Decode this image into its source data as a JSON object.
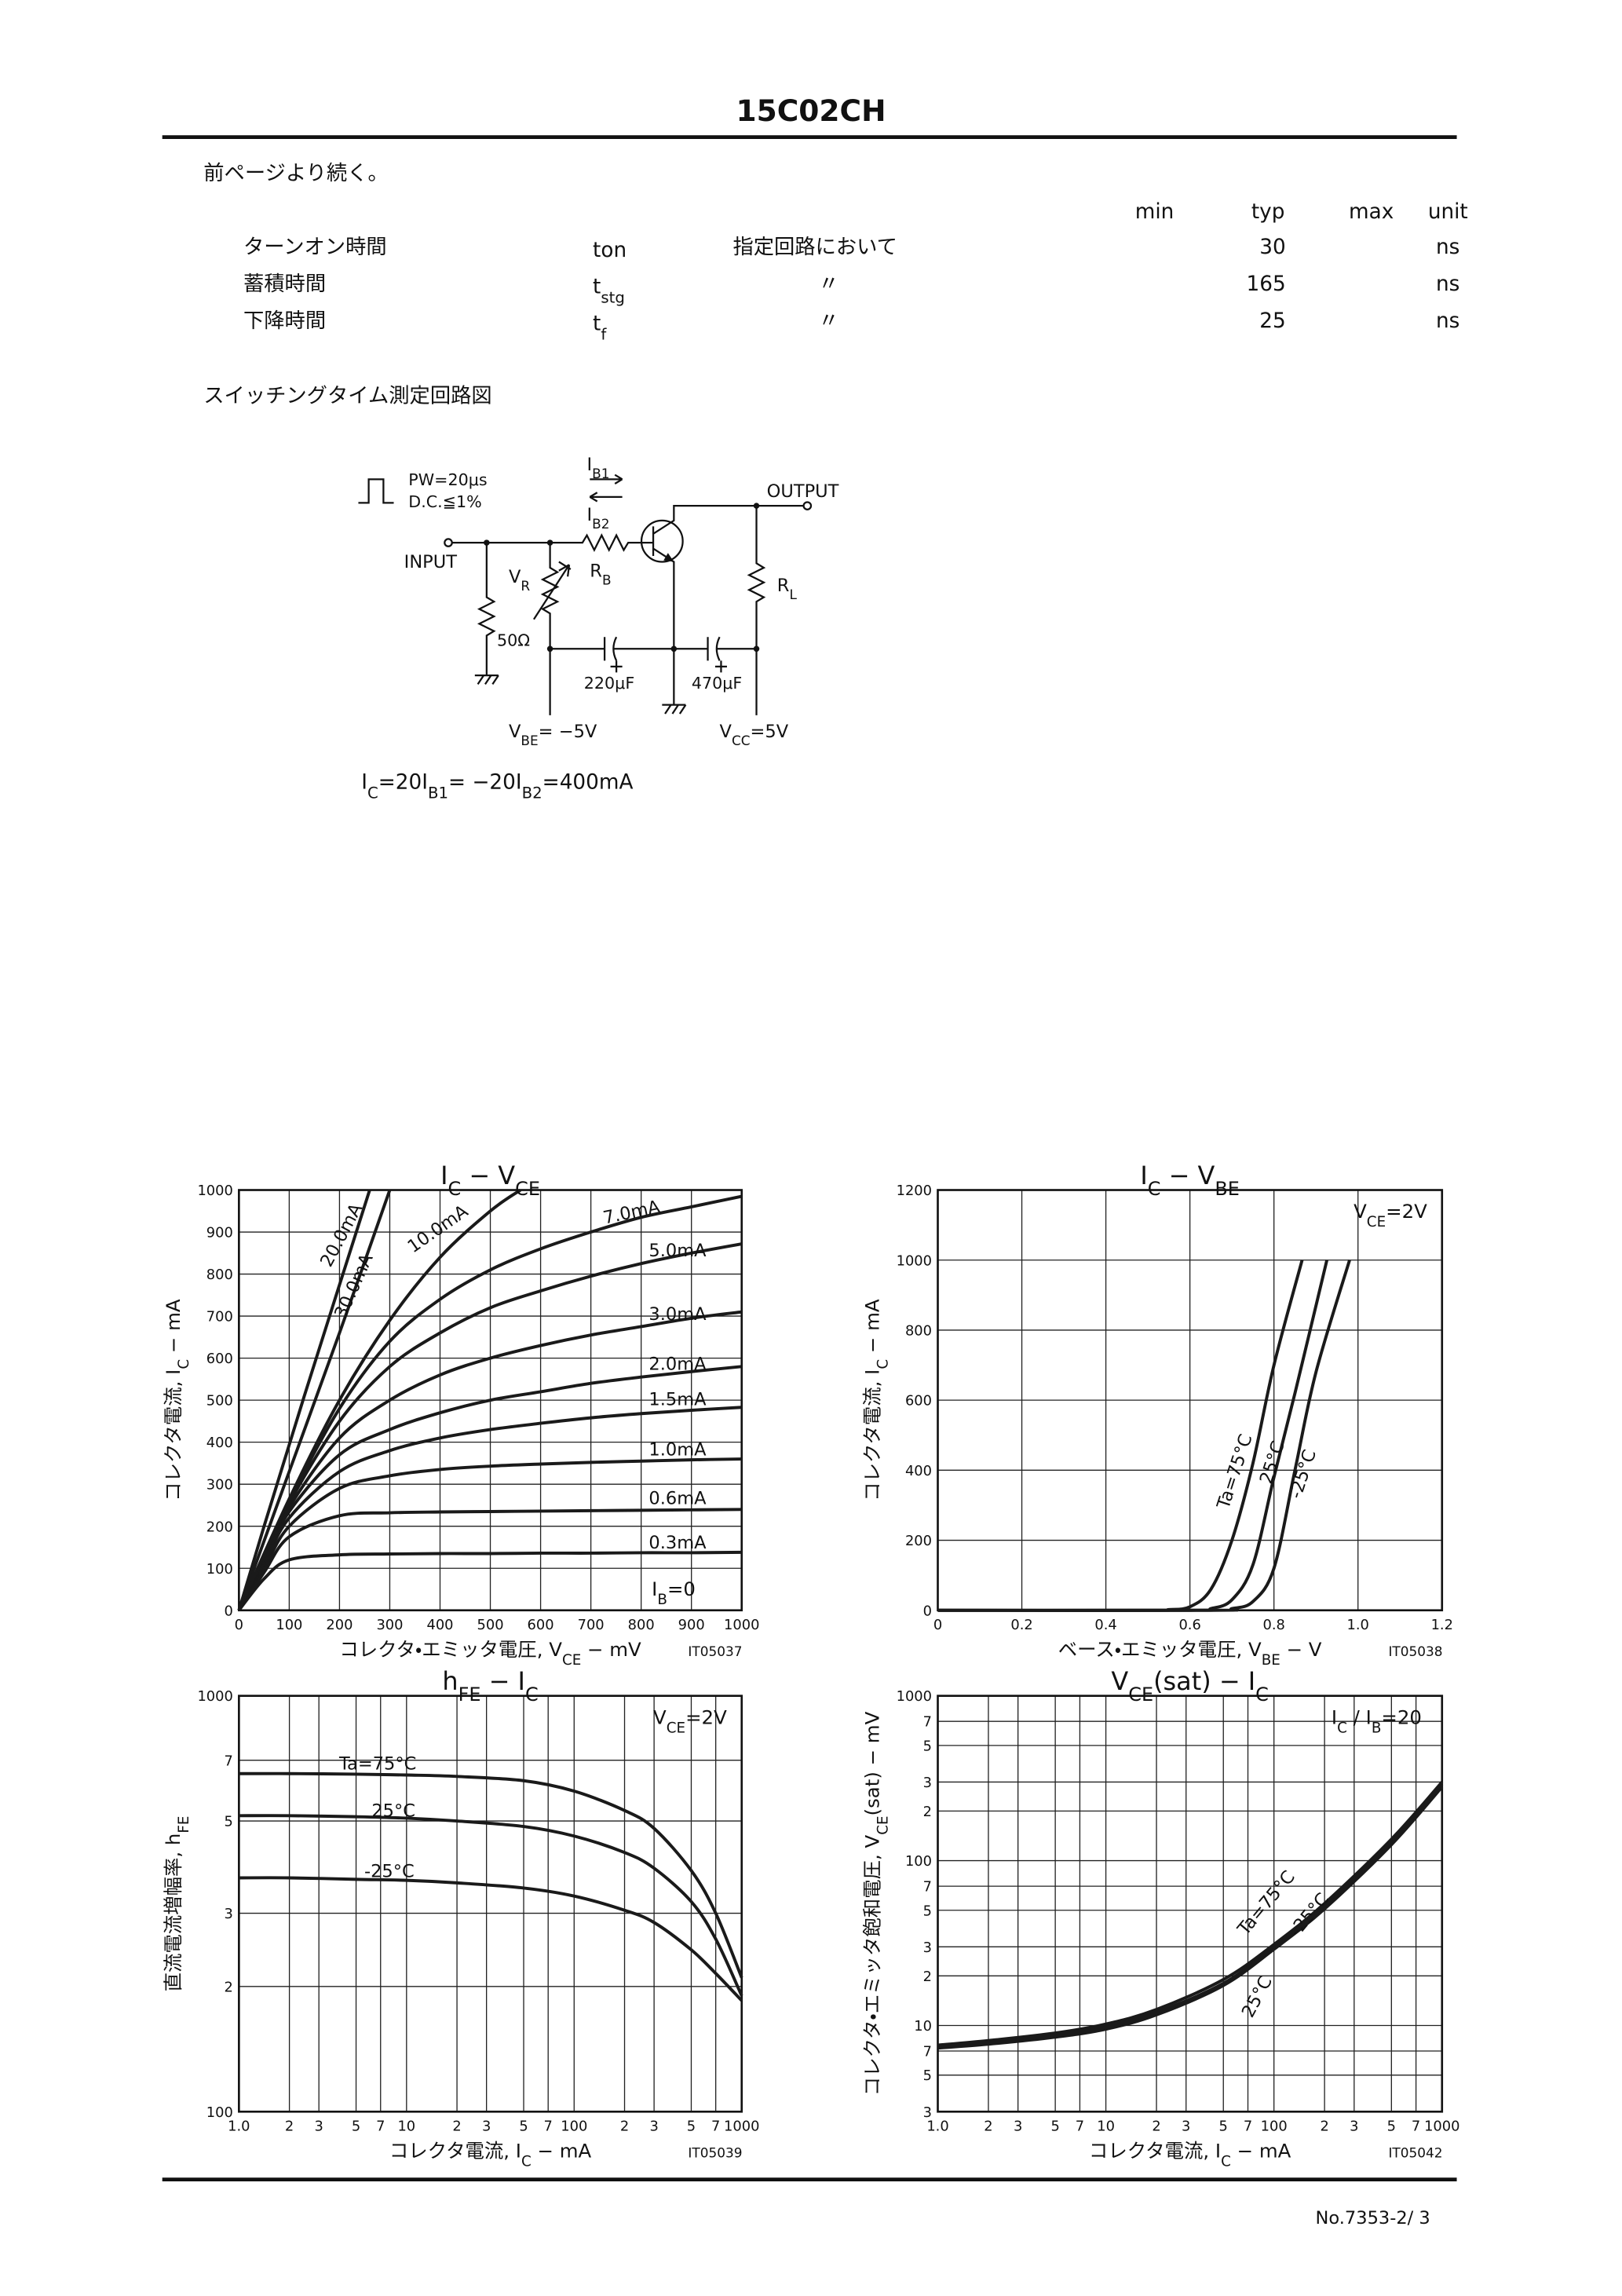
{
  "header": {
    "title": "15C02CH"
  },
  "intro": "前ページより続く。",
  "table": {
    "columns": [
      "min",
      "typ",
      "max",
      "unit"
    ],
    "rows": [
      [
        "ターンオン時間",
        "ton",
        "指定回路において",
        30,
        "ns"
      ],
      [
        "蓄積時間",
        [
          "t",
          "stg"
        ],
        "〃",
        165,
        "ns"
      ],
      [
        "下降時間",
        [
          "t",
          "f"
        ],
        "〃",
        25,
        "ns"
      ]
    ]
  },
  "circuit": {
    "title": "スイッチングタイム測定回路図",
    "pulse": "PW=20μs",
    "duty": "D.C.≦1%",
    "input": "INPUT",
    "output": "OUTPUT",
    "ib1": [
      "I",
      "B1"
    ],
    "ib2": [
      "I",
      "B2"
    ],
    "rb": [
      "R",
      "B"
    ],
    "vr": [
      "V",
      "R"
    ],
    "rl": [
      "R",
      "L"
    ],
    "r50": "50Ω",
    "c1": "220μF",
    "c2": "470μF",
    "vbe": [
      "V",
      "BE",
      "= −5V"
    ],
    "vcc": [
      "V",
      "CC",
      "=5V"
    ],
    "condition": [
      "I",
      "C",
      "=20I",
      "B1",
      "= −20I",
      "B2",
      "=400mA"
    ]
  },
  "chart_data": [
    {
      "type": "line",
      "title": [
        "I",
        "C",
        " − V",
        "CE"
      ],
      "xlabel": [
        "コレクタ・エミッタ電圧, V",
        "CE",
        " − mV"
      ],
      "ylabel": [
        "コレクタ電流, I",
        "C",
        " − mA"
      ],
      "code": "IT05037",
      "annotations": [
        [
          "I",
          "B",
          "=0"
        ]
      ],
      "xlim": [
        0,
        1000
      ],
      "ylim": [
        0,
        1000
      ],
      "xticks": [
        0,
        100,
        200,
        300,
        400,
        500,
        600,
        700,
        800,
        900,
        1000
      ],
      "yticks": [
        0,
        100,
        200,
        300,
        400,
        500,
        600,
        700,
        800,
        900,
        1000
      ],
      "grid": true,
      "x": [
        0,
        50,
        100,
        200,
        300,
        400,
        500,
        600,
        700,
        800,
        900,
        1000
      ],
      "series": [
        {
          "name": "0.3mA",
          "color": "#1a1a1a",
          "values": [
            0,
            75,
            120,
            132,
            134,
            135,
            135,
            136,
            136,
            137,
            137,
            138
          ]
        },
        {
          "name": "0.6mA",
          "color": "#1a1a1a",
          "values": [
            0,
            90,
            175,
            225,
            232,
            234,
            235,
            236,
            237,
            238,
            239,
            240
          ]
        },
        {
          "name": "1.0mA",
          "color": "#1a1a1a",
          "values": [
            0,
            100,
            200,
            290,
            320,
            335,
            343,
            348,
            352,
            355,
            358,
            360
          ]
        },
        {
          "name": "1.5mA",
          "color": "#1a1a1a",
          "values": [
            0,
            110,
            220,
            330,
            380,
            410,
            430,
            445,
            458,
            468,
            476,
            483
          ]
        },
        {
          "name": "2.0mA",
          "color": "#1a1a1a",
          "values": [
            0,
            115,
            235,
            370,
            430,
            470,
            500,
            520,
            540,
            555,
            568,
            580
          ]
        },
        {
          "name": "3.0mA",
          "color": "#1a1a1a",
          "values": [
            0,
            120,
            245,
            410,
            500,
            560,
            600,
            630,
            655,
            675,
            695,
            710
          ]
        },
        {
          "name": "5.0mA",
          "color": "#1a1a1a",
          "values": [
            0,
            125,
            255,
            450,
            580,
            660,
            720,
            760,
            795,
            825,
            850,
            872
          ]
        },
        {
          "name": "7.0mA",
          "color": "#1a1a1a",
          "values": [
            0,
            130,
            260,
            480,
            640,
            740,
            810,
            860,
            900,
            935,
            960,
            985
          ]
        },
        {
          "name": "10.0mA",
          "color": "#1a1a1a",
          "x": [
            0,
            100,
            200,
            300,
            400,
            500,
            560
          ],
          "values": [
            0,
            265,
            500,
            690,
            840,
            950,
            1000
          ]
        },
        {
          "name": "20.0mA",
          "color": "#1a1a1a",
          "x": [
            0,
            100,
            200,
            300
          ],
          "values": [
            0,
            330,
            660,
            1000
          ]
        },
        {
          "name": "30.0mA",
          "color": "#1a1a1a",
          "x": [
            0,
            50,
            130,
            260
          ],
          "values": [
            0,
            200,
            510,
            1000
          ]
        }
      ]
    },
    {
      "type": "line",
      "title": [
        "I",
        "C",
        " − V",
        "BE"
      ],
      "xlabel": [
        "ベース・エミッタ電圧, V",
        "BE",
        " − V"
      ],
      "ylabel": [
        "コレクタ電流, I",
        "C",
        " − mA"
      ],
      "code": "IT05038",
      "annotations": [
        [
          "V",
          "CE",
          "=2V"
        ]
      ],
      "xlim": [
        0,
        1.2
      ],
      "ylim": [
        0,
        1200
      ],
      "xticks": [
        0,
        0.2,
        0.4,
        0.6,
        0.8,
        {
          "value": 1,
          "label": "1.0"
        },
        1.2
      ],
      "yticks": [
        0,
        200,
        400,
        600,
        800,
        1000,
        1200
      ],
      "grid": true,
      "series": [
        {
          "name": "Ta=75°C",
          "color": "#1a1a1a",
          "x": [
            0,
            0.5,
            0.55,
            0.6,
            0.65,
            0.7,
            0.75,
            0.8,
            0.867
          ],
          "values": [
            0,
            0,
            2,
            10,
            60,
            200,
            420,
            700,
            1000
          ]
        },
        {
          "name": "25°C",
          "color": "#1a1a1a",
          "x": [
            0,
            0.6,
            0.65,
            0.7,
            0.75,
            0.8,
            0.85,
            0.926
          ],
          "values": [
            0,
            0,
            5,
            30,
            130,
            380,
            620,
            1000
          ]
        },
        {
          "name": "-25°C",
          "color": "#1a1a1a",
          "x": [
            0,
            0.65,
            0.7,
            0.75,
            0.8,
            0.85,
            0.9,
            0.98
          ],
          "values": [
            0,
            0,
            5,
            25,
            120,
            400,
            680,
            1000
          ]
        }
      ]
    },
    {
      "type": "line",
      "title": [
        "h",
        "FE",
        " − I",
        "C"
      ],
      "xlabel": [
        "コレクタ電流, I",
        "C",
        " − mA"
      ],
      "ylabel": [
        "直流電流増幅率, h",
        "FE"
      ],
      "code": "IT05039",
      "annotations": [
        [
          "V",
          "CE",
          "=2V"
        ]
      ],
      "xlog": true,
      "ylog": true,
      "xlim": [
        1,
        1000
      ],
      "ylim": [
        100,
        1000
      ],
      "xticks": [
        {
          "value": 1,
          "label": "1.0"
        },
        2,
        3,
        5,
        7,
        10,
        {
          "value": 20,
          "label": "2"
        },
        {
          "value": 30,
          "label": "3"
        },
        {
          "value": 50,
          "label": "5"
        },
        {
          "value": 70,
          "label": "7"
        },
        100,
        {
          "value": 200,
          "label": "2"
        },
        {
          "value": 300,
          "label": "3"
        },
        {
          "value": 500,
          "label": "5"
        },
        {
          "value": 700,
          "label": "7"
        },
        1000
      ],
      "yticks": [
        100,
        {
          "value": 200,
          "label": "2"
        },
        {
          "value": 300,
          "label": "3"
        },
        {
          "value": 500,
          "label": "5"
        },
        {
          "value": 700,
          "label": "7"
        },
        1000
      ],
      "grid": true,
      "x": [
        1,
        2,
        5,
        10,
        20,
        50,
        100,
        200,
        300,
        500,
        700,
        1000
      ],
      "series": [
        {
          "name": "Ta=75°C",
          "color": "#1a1a1a",
          "values": [
            650,
            650,
            648,
            645,
            640,
            625,
            590,
            530,
            480,
            380,
            300,
            210
          ]
        },
        {
          "name": "25°C",
          "color": "#1a1a1a",
          "values": [
            515,
            515,
            512,
            508,
            500,
            485,
            460,
            420,
            385,
            320,
            260,
            190
          ]
        },
        {
          "name": "-25°C",
          "color": "#1a1a1a",
          "values": [
            365,
            365,
            362,
            360,
            355,
            345,
            330,
            305,
            285,
            245,
            215,
            185
          ]
        }
      ]
    },
    {
      "type": "line",
      "title": [
        "V",
        "CE",
        "(sat) − I",
        "C"
      ],
      "xlabel": [
        "コレクタ電流, I",
        "C",
        " − mA"
      ],
      "ylabel": [
        "コレクタ・エミッタ飽和電圧, V",
        "CE",
        "(sat) − mV"
      ],
      "code": "IT05042",
      "annotations": [
        [
          "I",
          "C",
          " / I",
          "B",
          "=20"
        ]
      ],
      "xlog": true,
      "ylog": true,
      "xlim": [
        1,
        1000
      ],
      "ylim": [
        3,
        1000
      ],
      "xticks": [
        {
          "value": 1,
          "label": "1.0"
        },
        2,
        3,
        5,
        7,
        10,
        {
          "value": 20,
          "label": "2"
        },
        {
          "value": 30,
          "label": "3"
        },
        {
          "value": 50,
          "label": "5"
        },
        {
          "value": 70,
          "label": "7"
        },
        100,
        {
          "value": 200,
          "label": "2"
        },
        {
          "value": 300,
          "label": "3"
        },
        {
          "value": 500,
          "label": "5"
        },
        {
          "value": 700,
          "label": "7"
        },
        1000
      ],
      "yticks": [
        3,
        5,
        7,
        10,
        {
          "value": 20,
          "label": "2"
        },
        {
          "value": 30,
          "label": "3"
        },
        {
          "value": 50,
          "label": "5"
        },
        {
          "value": 70,
          "label": "7"
        },
        100,
        {
          "value": 200,
          "label": "2"
        },
        {
          "value": 300,
          "label": "3"
        },
        {
          "value": 500,
          "label": "5"
        },
        {
          "value": 700,
          "label": "7"
        },
        1000
      ],
      "grid": true,
      "x": [
        1,
        2,
        5,
        10,
        20,
        50,
        100,
        200,
        500,
        1000
      ],
      "series": [
        {
          "name": "Ta=75°C",
          "color": "#1a1a1a",
          "values": [
            7.6,
            8.1,
            9,
            10.2,
            12.5,
            19,
            31,
            55,
            135,
            300
          ]
        },
        {
          "name": "-25°C",
          "color": "#1a1a1a",
          "values": [
            7.3,
            7.7,
            8.5,
            9.5,
            11.6,
            17.5,
            29,
            51,
            125,
            280
          ]
        },
        {
          "name": "25°C",
          "color": "#1a1a1a",
          "values": [
            7.4,
            7.9,
            8.7,
            9.8,
            12,
            18,
            30,
            53,
            130,
            290
          ]
        }
      ]
    }
  ],
  "footer": "No.7353-2/ 3"
}
